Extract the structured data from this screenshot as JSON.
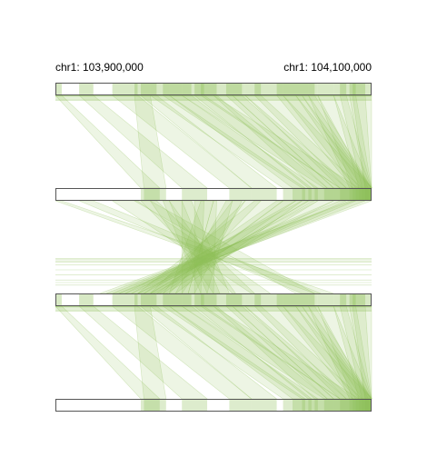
{
  "header": {
    "start_label": "chr1: 103,900,000",
    "end_label": "chr1: 104,100,000"
  },
  "colors": {
    "band_fill": "#8fbf5a",
    "track_stroke": "#555555",
    "background": "#ffffff"
  },
  "tracks": [
    {
      "id": "track-1",
      "highlighted": true
    },
    {
      "id": "track-2",
      "highlighted": false
    },
    {
      "id": "track-3",
      "highlighted": true
    },
    {
      "id": "track-4",
      "highlighted": false
    }
  ],
  "blocks": [
    [
      0.0,
      0.02
    ],
    [
      0.075,
      0.12
    ],
    [
      0.18,
      0.26
    ],
    [
      0.25,
      0.3
    ],
    [
      0.27,
      0.32
    ],
    [
      0.3,
      0.36
    ],
    [
      0.34,
      0.4
    ],
    [
      0.36,
      0.43
    ],
    [
      0.4,
      0.47
    ],
    [
      0.44,
      0.51
    ],
    [
      0.46,
      0.5
    ],
    [
      0.5,
      0.56
    ],
    [
      0.54,
      0.59
    ],
    [
      0.56,
      0.6
    ],
    [
      0.6,
      0.65
    ],
    [
      0.63,
      0.72
    ],
    [
      0.7,
      0.76
    ],
    [
      0.72,
      0.78
    ],
    [
      0.76,
      0.8
    ],
    [
      0.78,
      0.82
    ],
    [
      0.8,
      0.83
    ],
    [
      0.83,
      0.88
    ],
    [
      0.88,
      0.92
    ],
    [
      0.9,
      0.95
    ],
    [
      0.93,
      0.98
    ],
    [
      0.94,
      1.0
    ]
  ],
  "forward_links": [
    [
      0,
      0.27,
      0.33
    ],
    [
      1,
      0.4,
      0.48
    ],
    [
      2,
      0.55,
      0.62
    ],
    [
      3,
      0.28,
      0.35
    ],
    [
      4,
      0.62,
      0.7
    ],
    [
      5,
      0.72,
      0.79
    ],
    [
      6,
      0.78,
      0.83
    ],
    [
      7,
      0.75,
      0.81
    ],
    [
      8,
      0.85,
      0.9
    ],
    [
      9,
      0.8,
      0.86
    ],
    [
      10,
      0.9,
      0.96
    ],
    [
      11,
      0.82,
      0.88
    ],
    [
      12,
      0.86,
      0.92
    ],
    [
      13,
      0.88,
      0.94
    ],
    [
      14,
      0.9,
      0.97
    ],
    [
      15,
      0.92,
      1.0
    ],
    [
      16,
      0.94,
      1.0
    ],
    [
      17,
      0.95,
      1.0
    ],
    [
      18,
      0.96,
      1.0
    ],
    [
      19,
      0.97,
      1.0
    ],
    [
      20,
      0.93,
      0.99
    ],
    [
      21,
      0.94,
      1.0
    ],
    [
      22,
      0.96,
      1.0
    ],
    [
      23,
      0.97,
      1.0
    ],
    [
      24,
      0.98,
      1.0
    ],
    [
      25,
      0.98,
      1.0
    ]
  ],
  "reverse_links": [
    [
      0,
      0.82,
      0.88
    ],
    [
      1,
      0.78,
      0.84
    ],
    [
      2,
      0.62,
      0.68
    ],
    [
      3,
      0.76,
      0.82
    ],
    [
      4,
      0.56,
      0.63
    ],
    [
      5,
      0.5,
      0.57
    ],
    [
      6,
      0.46,
      0.52
    ],
    [
      7,
      0.48,
      0.55
    ],
    [
      8,
      0.4,
      0.46
    ],
    [
      9,
      0.44,
      0.5
    ],
    [
      10,
      0.36,
      0.42
    ],
    [
      11,
      0.42,
      0.48
    ],
    [
      12,
      0.38,
      0.44
    ],
    [
      13,
      0.34,
      0.4
    ],
    [
      14,
      0.3,
      0.36
    ],
    [
      15,
      0.26,
      0.33
    ],
    [
      16,
      0.28,
      0.34
    ],
    [
      17,
      0.32,
      0.38
    ],
    [
      18,
      0.24,
      0.3
    ],
    [
      19,
      0.22,
      0.28
    ],
    [
      20,
      0.3,
      0.35
    ],
    [
      21,
      0.26,
      0.31
    ],
    [
      22,
      0.2,
      0.26
    ],
    [
      23,
      0.18,
      0.24
    ],
    [
      24,
      0.16,
      0.22
    ],
    [
      25,
      0.14,
      0.2
    ]
  ],
  "thin_lines_rel": [
    0.005,
    0.01,
    0.015,
    0.02,
    0.03,
    0.05,
    0.07,
    0.09,
    0.1,
    0.11
  ]
}
